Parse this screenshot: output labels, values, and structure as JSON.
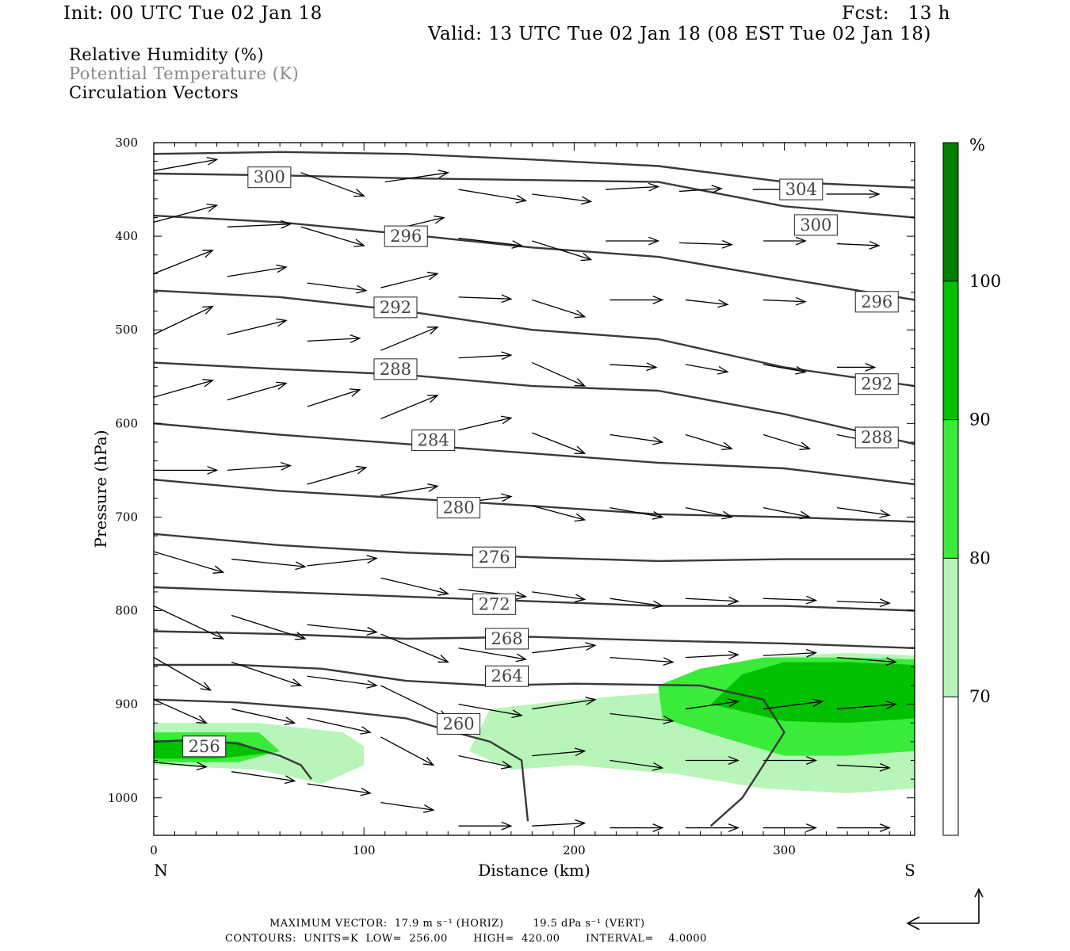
{
  "header": {
    "init": "Init: 00 UTC Tue 02 Jan 18",
    "fcst": "Fcst:   13 h",
    "valid": "Valid: 13 UTC Tue 02 Jan 18 (08 EST Tue 02 Jan 18)"
  },
  "legend": {
    "rh": "Relative Humidity (%)",
    "theta": "Potential Temperature (K)",
    "vectors": "Circulation Vectors"
  },
  "colors": {
    "rh_70_80": "#b8f5b8",
    "rh_80_90": "#3aeb3a",
    "rh_90_100": "#00c000",
    "rh_100": "#008000",
    "contour": "#3a3a3a"
  },
  "footer": {
    "max_vector": "MAXIMUM VECTOR:  17.9 m s⁻¹ (HORIZ)        19.5 dPa s⁻¹ (VERT)",
    "contours": "CONTOURS:  UNITS=K  LOW=  256.00       HIGH=  420.00       INTERVAL=    4.0000"
  },
  "chart_data": {
    "type": "cross-section",
    "xlabel": "Distance (km)",
    "ylabel": "Pressure (hPa)",
    "x_left_label": "N",
    "x_right_label": "S",
    "xlim": [
      0,
      362
    ],
    "ylim": [
      1040,
      300
    ],
    "x_ticks": [
      0,
      100,
      200,
      300
    ],
    "y_ticks": [
      300,
      400,
      500,
      600,
      700,
      800,
      900,
      1000
    ],
    "colorbar": {
      "unit": "%",
      "levels": [
        70,
        80,
        90,
        100
      ]
    },
    "theta_contours": [
      {
        "level": 256,
        "x": [
          0,
          20,
          40,
          60,
          70,
          75
        ],
        "p": [
          940,
          938,
          942,
          955,
          965,
          980
        ]
      },
      {
        "level": 260,
        "x": [
          0,
          40,
          80,
          120,
          140,
          160,
          175,
          178
        ],
        "p": [
          895,
          898,
          905,
          915,
          928,
          940,
          960,
          1025
        ]
      },
      {
        "level": 264,
        "x": [
          0,
          40,
          80,
          120,
          160,
          200,
          260,
          290,
          300,
          280,
          265
        ],
        "p": [
          858,
          858,
          862,
          875,
          880,
          878,
          880,
          895,
          930,
          1000,
          1030
        ]
      },
      {
        "level": 268,
        "x": [
          0,
          60,
          120,
          180,
          240,
          300,
          362
        ],
        "p": [
          822,
          825,
          830,
          828,
          832,
          835,
          840
        ]
      },
      {
        "level": 272,
        "x": [
          0,
          60,
          120,
          180,
          240,
          300,
          362
        ],
        "p": [
          775,
          780,
          785,
          790,
          795,
          795,
          800
        ]
      },
      {
        "level": 276,
        "x": [
          0,
          60,
          120,
          180,
          240,
          300,
          362
        ],
        "p": [
          718,
          730,
          738,
          743,
          747,
          745,
          745
        ]
      },
      {
        "level": 280,
        "x": [
          0,
          60,
          120,
          180,
          240,
          300,
          362
        ],
        "p": [
          660,
          672,
          680,
          688,
          697,
          700,
          705
        ]
      },
      {
        "level": 284,
        "x": [
          0,
          60,
          120,
          180,
          240,
          300,
          362
        ],
        "p": [
          600,
          612,
          622,
          632,
          642,
          648,
          665
        ]
      },
      {
        "level": 288,
        "x": [
          0,
          60,
          120,
          180,
          240,
          300,
          362
        ],
        "p": [
          535,
          542,
          548,
          560,
          565,
          590,
          622
        ]
      },
      {
        "level": 292,
        "x": [
          0,
          60,
          120,
          180,
          240,
          300,
          362
        ],
        "p": [
          458,
          465,
          480,
          500,
          510,
          540,
          560
        ]
      },
      {
        "level": 296,
        "x": [
          0,
          60,
          120,
          180,
          240,
          300,
          362
        ],
        "p": [
          378,
          385,
          398,
          412,
          422,
          445,
          468
        ]
      },
      {
        "level": 300,
        "x": [
          0,
          60,
          120,
          180,
          240,
          300,
          362
        ],
        "p": [
          333,
          335,
          338,
          340,
          342,
          368,
          380
        ]
      },
      {
        "level": 304,
        "x": [
          0,
          60,
          120,
          180,
          240,
          300,
          362
        ],
        "p": [
          312,
          310,
          312,
          318,
          325,
          342,
          348
        ]
      }
    ],
    "contour_labels": [
      {
        "text": "256",
        "x": 24,
        "p": 945
      },
      {
        "text": "260",
        "x": 145,
        "p": 921
      },
      {
        "text": "264",
        "x": 168,
        "p": 870
      },
      {
        "text": "268",
        "x": 168,
        "p": 830
      },
      {
        "text": "272",
        "x": 162,
        "p": 793
      },
      {
        "text": "276",
        "x": 162,
        "p": 743
      },
      {
        "text": "280",
        "x": 145,
        "p": 690
      },
      {
        "text": "284",
        "x": 133,
        "p": 618
      },
      {
        "text": "288",
        "x": 115,
        "p": 542
      },
      {
        "text": "292",
        "x": 115,
        "p": 476
      },
      {
        "text": "296",
        "x": 120,
        "p": 400
      },
      {
        "text": "300",
        "x": 55,
        "p": 337
      },
      {
        "text": "304",
        "x": 308,
        "p": 350
      },
      {
        "text": "300",
        "x": 315,
        "p": 388
      },
      {
        "text": "296",
        "x": 344,
        "p": 470
      },
      {
        "text": "292",
        "x": 344,
        "p": 558
      },
      {
        "text": "288",
        "x": 344,
        "p": 615
      }
    ],
    "rh_regions": [
      {
        "level": 70,
        "x": [
          0,
          50,
          90,
          100,
          100,
          80,
          50,
          0
        ],
        "p": [
          920,
          920,
          930,
          945,
          965,
          985,
          970,
          965
        ]
      },
      {
        "level": 70,
        "x": [
          160,
          200,
          240,
          260,
          290,
          330,
          362,
          362,
          330,
          290,
          250,
          200,
          170,
          150
        ],
        "p": [
          905,
          895,
          888,
          870,
          850,
          845,
          848,
          990,
          995,
          990,
          975,
          965,
          970,
          950
        ]
      },
      {
        "level": 80,
        "x": [
          0,
          50,
          60,
          40,
          0
        ],
        "p": [
          930,
          930,
          950,
          962,
          962
        ]
      },
      {
        "level": 80,
        "x": [
          240,
          260,
          290,
          330,
          362,
          362,
          330,
          300,
          270,
          242
        ],
        "p": [
          880,
          862,
          850,
          850,
          852,
          950,
          955,
          955,
          935,
          915
        ]
      },
      {
        "level": 90,
        "x": [
          0,
          40,
          55,
          30,
          0
        ],
        "p": [
          938,
          940,
          952,
          958,
          958
        ]
      },
      {
        "level": 90,
        "x": [
          265,
          280,
          300,
          330,
          362,
          362,
          330,
          300,
          275
        ],
        "p": [
          900,
          868,
          855,
          855,
          858,
          915,
          920,
          918,
          905
        ]
      }
    ],
    "vectors": [
      {
        "x": 0,
        "p": 330,
        "dx": 30,
        "dp": -12
      },
      {
        "x": 70,
        "p": 332,
        "dx": 30,
        "dp": 25
      },
      {
        "x": 110,
        "p": 342,
        "dx": 30,
        "dp": -10
      },
      {
        "x": 145,
        "p": 350,
        "dx": 32,
        "dp": 12
      },
      {
        "x": 180,
        "p": 355,
        "dx": 28,
        "dp": 8
      },
      {
        "x": 215,
        "p": 350,
        "dx": 25,
        "dp": -3
      },
      {
        "x": 250,
        "p": 352,
        "dx": 20,
        "dp": -3
      },
      {
        "x": 285,
        "p": 350,
        "dx": 30,
        "dp": 0
      },
      {
        "x": 320,
        "p": 355,
        "dx": 25,
        "dp": 0
      },
      {
        "x": 0,
        "p": 385,
        "dx": 30,
        "dp": -18
      },
      {
        "x": 35,
        "p": 390,
        "dx": 30,
        "dp": -3
      },
      {
        "x": 70,
        "p": 390,
        "dx": 30,
        "dp": 20
      },
      {
        "x": 110,
        "p": 395,
        "dx": 28,
        "dp": -15
      },
      {
        "x": 145,
        "p": 402,
        "dx": 30,
        "dp": 8
      },
      {
        "x": 180,
        "p": 405,
        "dx": 28,
        "dp": 20
      },
      {
        "x": 215,
        "p": 405,
        "dx": 25,
        "dp": 0
      },
      {
        "x": 250,
        "p": 407,
        "dx": 25,
        "dp": 2
      },
      {
        "x": 290,
        "p": 405,
        "dx": 20,
        "dp": 0
      },
      {
        "x": 325,
        "p": 408,
        "dx": 20,
        "dp": 2
      },
      {
        "x": 0,
        "p": 440,
        "dx": 28,
        "dp": -25
      },
      {
        "x": 35,
        "p": 443,
        "dx": 28,
        "dp": -10
      },
      {
        "x": 73,
        "p": 450,
        "dx": 28,
        "dp": 8
      },
      {
        "x": 108,
        "p": 455,
        "dx": 27,
        "dp": -15
      },
      {
        "x": 145,
        "p": 465,
        "dx": 25,
        "dp": 2
      },
      {
        "x": 180,
        "p": 468,
        "dx": 25,
        "dp": 18
      },
      {
        "x": 217,
        "p": 468,
        "dx": 25,
        "dp": 0
      },
      {
        "x": 253,
        "p": 468,
        "dx": 20,
        "dp": 5
      },
      {
        "x": 290,
        "p": 468,
        "dx": 20,
        "dp": 2
      },
      {
        "x": 0,
        "p": 505,
        "dx": 28,
        "dp": -30
      },
      {
        "x": 35,
        "p": 505,
        "dx": 28,
        "dp": -15
      },
      {
        "x": 73,
        "p": 512,
        "dx": 25,
        "dp": -3
      },
      {
        "x": 108,
        "p": 522,
        "dx": 27,
        "dp": -25
      },
      {
        "x": 145,
        "p": 530,
        "dx": 25,
        "dp": -3
      },
      {
        "x": 180,
        "p": 535,
        "dx": 25,
        "dp": 25
      },
      {
        "x": 217,
        "p": 537,
        "dx": 22,
        "dp": 3
      },
      {
        "x": 253,
        "p": 537,
        "dx": 20,
        "dp": 8
      },
      {
        "x": 290,
        "p": 537,
        "dx": 20,
        "dp": 8
      },
      {
        "x": 325,
        "p": 540,
        "dx": 18,
        "dp": 0
      },
      {
        "x": 0,
        "p": 572,
        "dx": 28,
        "dp": -18
      },
      {
        "x": 35,
        "p": 575,
        "dx": 28,
        "dp": -18
      },
      {
        "x": 73,
        "p": 582,
        "dx": 25,
        "dp": -18
      },
      {
        "x": 108,
        "p": 595,
        "dx": 27,
        "dp": -25
      },
      {
        "x": 145,
        "p": 607,
        "dx": 25,
        "dp": -13
      },
      {
        "x": 180,
        "p": 610,
        "dx": 25,
        "dp": 22
      },
      {
        "x": 217,
        "p": 612,
        "dx": 25,
        "dp": 8
      },
      {
        "x": 253,
        "p": 612,
        "dx": 22,
        "dp": 15
      },
      {
        "x": 290,
        "p": 612,
        "dx": 22,
        "dp": 15
      },
      {
        "x": 325,
        "p": 612,
        "dx": 22,
        "dp": 10
      },
      {
        "x": 0,
        "p": 650,
        "dx": 30,
        "dp": 0
      },
      {
        "x": 35,
        "p": 650,
        "dx": 30,
        "dp": -5
      },
      {
        "x": 73,
        "p": 665,
        "dx": 28,
        "dp": -18
      },
      {
        "x": 108,
        "p": 677,
        "dx": 27,
        "dp": -10
      },
      {
        "x": 145,
        "p": 685,
        "dx": 25,
        "dp": -7
      },
      {
        "x": 180,
        "p": 688,
        "dx": 25,
        "dp": 15
      },
      {
        "x": 217,
        "p": 690,
        "dx": 25,
        "dp": 10
      },
      {
        "x": 253,
        "p": 690,
        "dx": 22,
        "dp": 10
      },
      {
        "x": 290,
        "p": 690,
        "dx": 22,
        "dp": 10
      },
      {
        "x": 325,
        "p": 690,
        "dx": 25,
        "dp": 8
      },
      {
        "x": 0,
        "p": 737,
        "dx": 33,
        "dp": 22
      },
      {
        "x": 37,
        "p": 745,
        "dx": 35,
        "dp": 8
      },
      {
        "x": 73,
        "p": 752,
        "dx": 33,
        "dp": -8
      },
      {
        "x": 108,
        "p": 765,
        "dx": 32,
        "dp": 17
      },
      {
        "x": 145,
        "p": 777,
        "dx": 32,
        "dp": 8
      },
      {
        "x": 180,
        "p": 780,
        "dx": 25,
        "dp": 8
      },
      {
        "x": 217,
        "p": 787,
        "dx": 25,
        "dp": 8
      },
      {
        "x": 253,
        "p": 787,
        "dx": 25,
        "dp": 3
      },
      {
        "x": 290,
        "p": 787,
        "dx": 25,
        "dp": 2
      },
      {
        "x": 325,
        "p": 790,
        "dx": 25,
        "dp": 2
      },
      {
        "x": 0,
        "p": 795,
        "dx": 33,
        "dp": 35
      },
      {
        "x": 37,
        "p": 805,
        "dx": 35,
        "dp": 25
      },
      {
        "x": 73,
        "p": 815,
        "dx": 33,
        "dp": 8
      },
      {
        "x": 108,
        "p": 825,
        "dx": 32,
        "dp": 30
      },
      {
        "x": 145,
        "p": 840,
        "dx": 32,
        "dp": 12
      },
      {
        "x": 180,
        "p": 845,
        "dx": 30,
        "dp": -8
      },
      {
        "x": 217,
        "p": 850,
        "dx": 30,
        "dp": 5
      },
      {
        "x": 253,
        "p": 850,
        "dx": 25,
        "dp": -3
      },
      {
        "x": 290,
        "p": 848,
        "dx": 25,
        "dp": -3
      },
      {
        "x": 325,
        "p": 850,
        "dx": 28,
        "dp": 5
      },
      {
        "x": 0,
        "p": 850,
        "dx": 27,
        "dp": 35
      },
      {
        "x": 37,
        "p": 855,
        "dx": 33,
        "dp": 25
      },
      {
        "x": 73,
        "p": 870,
        "dx": 33,
        "dp": 10
      },
      {
        "x": 108,
        "p": 880,
        "dx": 32,
        "dp": 35
      },
      {
        "x": 145,
        "p": 900,
        "dx": 30,
        "dp": 12
      },
      {
        "x": 180,
        "p": 905,
        "dx": 30,
        "dp": -10
      },
      {
        "x": 217,
        "p": 910,
        "dx": 30,
        "dp": 8
      },
      {
        "x": 253,
        "p": 905,
        "dx": 25,
        "dp": -8
      },
      {
        "x": 290,
        "p": 905,
        "dx": 28,
        "dp": -8
      },
      {
        "x": 325,
        "p": 905,
        "dx": 28,
        "dp": -5
      },
      {
        "x": 0,
        "p": 895,
        "dx": 25,
        "dp": 25
      },
      {
        "x": 37,
        "p": 905,
        "dx": 30,
        "dp": 15
      },
      {
        "x": 73,
        "p": 915,
        "dx": 30,
        "dp": 15
      },
      {
        "x": 108,
        "p": 935,
        "dx": 25,
        "dp": 30
      },
      {
        "x": 145,
        "p": 955,
        "dx": 25,
        "dp": 12
      },
      {
        "x": 180,
        "p": 955,
        "dx": 25,
        "dp": -5
      },
      {
        "x": 217,
        "p": 960,
        "dx": 25,
        "dp": 8
      },
      {
        "x": 253,
        "p": 960,
        "dx": 25,
        "dp": 0
      },
      {
        "x": 290,
        "p": 960,
        "dx": 25,
        "dp": 0
      },
      {
        "x": 325,
        "p": 965,
        "dx": 25,
        "dp": 3
      },
      {
        "x": 0,
        "p": 962,
        "dx": 25,
        "dp": 5
      },
      {
        "x": 37,
        "p": 972,
        "dx": 30,
        "dp": 10
      },
      {
        "x": 73,
        "p": 985,
        "dx": 30,
        "dp": 10
      },
      {
        "x": 108,
        "p": 1005,
        "dx": 25,
        "dp": 8
      },
      {
        "x": 145,
        "p": 1030,
        "dx": 25,
        "dp": 0
      },
      {
        "x": 180,
        "p": 1030,
        "dx": 25,
        "dp": -3
      },
      {
        "x": 217,
        "p": 1032,
        "dx": 25,
        "dp": 0
      },
      {
        "x": 253,
        "p": 1032,
        "dx": 25,
        "dp": 0
      },
      {
        "x": 290,
        "p": 1032,
        "dx": 25,
        "dp": 0
      },
      {
        "x": 325,
        "p": 1032,
        "dx": 25,
        "dp": 0
      }
    ]
  }
}
